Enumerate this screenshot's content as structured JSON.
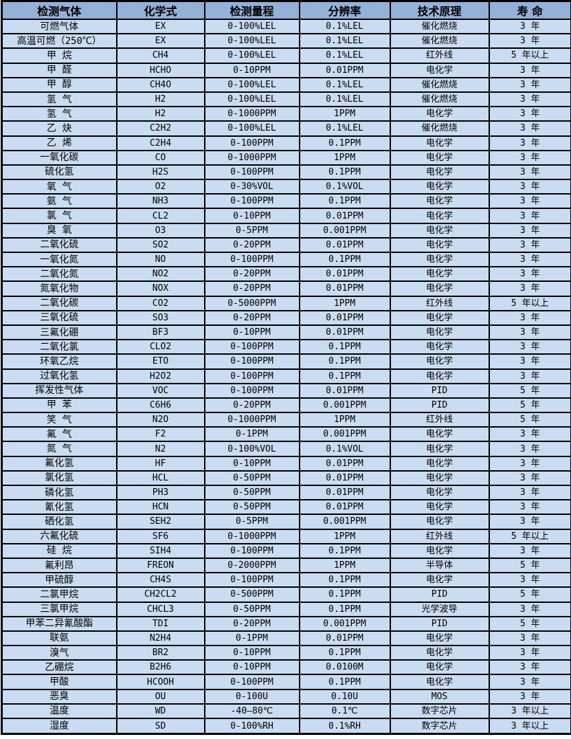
{
  "colors": {
    "header_bg": "#94B1D8",
    "row_bg": "#C9DCF1",
    "border_color": "#000000",
    "text_color": "#000000",
    "page_bg": "#FFFFFF"
  },
  "table": {
    "headers": [
      "检测气体",
      "化学式",
      "检测量程",
      "分辨率",
      "技术原理",
      "寿 命"
    ],
    "rows": [
      {
        "gas": "可燃气体",
        "formula": "EX",
        "range": "0-100%LEL",
        "resolution": "0.1%LEL",
        "principle": "催化燃烧",
        "lifespan": "3 年"
      },
      {
        "gas": "高温可燃（250℃）",
        "formula": "EX",
        "range": "0-100%LEL",
        "resolution": "0.1%LEL",
        "principle": "催化燃烧",
        "lifespan": "3 年"
      },
      {
        "gas": "甲 烷",
        "formula": "CH4",
        "range": "0-100%LEL",
        "resolution": "0.1%LEL",
        "principle": "红外线",
        "lifespan": "5 年以上"
      },
      {
        "gas": "甲 醛",
        "formula": "HCHO",
        "range": "0-10PPM",
        "resolution": "0.01PPM",
        "principle": "电化学",
        "lifespan": "3 年"
      },
      {
        "gas": "甲 醇",
        "formula": "CH4O",
        "range": "0-100%LEL",
        "resolution": "0.1%LEL",
        "principle": "催化燃烧",
        "lifespan": "3 年"
      },
      {
        "gas": "氢 气",
        "formula": "H2",
        "range": "0-100%LEL",
        "resolution": "0.1%LEL",
        "principle": "催化燃烧",
        "lifespan": "3 年"
      },
      {
        "gas": "氢 气",
        "formula": "H2",
        "range": "0-1000PPM",
        "resolution": "1PPM",
        "principle": "电化学",
        "lifespan": "3 年"
      },
      {
        "gas": "乙 炔",
        "formula": "C2H2",
        "range": "0-100%LEL",
        "resolution": "0.1%LEL",
        "principle": "催化燃烧",
        "lifespan": "3 年"
      },
      {
        "gas": "乙 烯",
        "formula": "C2H4",
        "range": "0-100PPM",
        "resolution": "0.1PPM",
        "principle": "电化学",
        "lifespan": "3 年"
      },
      {
        "gas": "一氧化碳",
        "formula": "CO",
        "range": "0-1000PPM",
        "resolution": "1PPM",
        "principle": "电化学",
        "lifespan": "3 年"
      },
      {
        "gas": "硫化氢",
        "formula": "H2S",
        "range": "0-100PPM",
        "resolution": "0.1PPM",
        "principle": "电化学",
        "lifespan": "3 年"
      },
      {
        "gas": "氧 气",
        "formula": "O2",
        "range": "0-30%VOL",
        "resolution": "0.1%VOL",
        "principle": "电化学",
        "lifespan": "3 年"
      },
      {
        "gas": "氨 气",
        "formula": "NH3",
        "range": "0-100PPM",
        "resolution": "0.1PPM",
        "principle": "电化学",
        "lifespan": "3 年"
      },
      {
        "gas": "氯 气",
        "formula": "CL2",
        "range": "0-10PPM",
        "resolution": "0.01PPM",
        "principle": "电化学",
        "lifespan": "3 年"
      },
      {
        "gas": "臭 氧",
        "formula": "O3",
        "range": "0-5PPM",
        "resolution": "0.001PPM",
        "principle": "电化学",
        "lifespan": "3 年"
      },
      {
        "gas": "二氧化硫",
        "formula": "SO2",
        "range": "0-20PPM",
        "resolution": "0.01PPM",
        "principle": "电化学",
        "lifespan": "3 年"
      },
      {
        "gas": "一氧化氮",
        "formula": "NO",
        "range": "0-100PPM",
        "resolution": "0.1PPM",
        "principle": "电化学",
        "lifespan": "3 年"
      },
      {
        "gas": "二氧化氮",
        "formula": "NO2",
        "range": "0-20PPM",
        "resolution": "0.01PPM",
        "principle": "电化学",
        "lifespan": "3 年"
      },
      {
        "gas": "氮氧化物",
        "formula": "NOX",
        "range": "0-20PPM",
        "resolution": "0.01PPM",
        "principle": "电化学",
        "lifespan": "3 年"
      },
      {
        "gas": "二氧化碳",
        "formula": "CO2",
        "range": "0-5000PPM",
        "resolution": "1PPM",
        "principle": "红外线",
        "lifespan": "5 年以上"
      },
      {
        "gas": "三氧化硫",
        "formula": "SO3",
        "range": "0-20PPM",
        "resolution": "0.01PPM",
        "principle": "电化学",
        "lifespan": "3 年"
      },
      {
        "gas": "三氟化硼",
        "formula": "BF3",
        "range": "0-10PPM",
        "resolution": "0.01PPM",
        "principle": "电化学",
        "lifespan": "3 年"
      },
      {
        "gas": "二氧化氯",
        "formula": "CLO2",
        "range": "0-100PPM",
        "resolution": "0.1PPM",
        "principle": "电化学",
        "lifespan": "3 年"
      },
      {
        "gas": "环氧乙烷",
        "formula": "ETO",
        "range": "0-100PPM",
        "resolution": "0.1PPM",
        "principle": "电化学",
        "lifespan": "3 年"
      },
      {
        "gas": "过氧化氢",
        "formula": "H2O2",
        "range": "0-100PPM",
        "resolution": "0.1PPM",
        "principle": "电化学",
        "lifespan": "3 年"
      },
      {
        "gas": "挥发性气体",
        "formula": "VOC",
        "range": "0-100PPM",
        "resolution": "0.01PPM",
        "principle": "PID",
        "lifespan": "5 年"
      },
      {
        "gas": "甲 苯",
        "formula": "C6H6",
        "range": "0-20PPM",
        "resolution": "0.001PPM",
        "principle": "PID",
        "lifespan": "5 年"
      },
      {
        "gas": "笑 气",
        "formula": "N2O",
        "range": "0-1000PPM",
        "resolution": "1PPM",
        "principle": "红外线",
        "lifespan": "5 年"
      },
      {
        "gas": "氟 气",
        "formula": "F2",
        "range": "0-1PPM",
        "resolution": "0.001PPM",
        "principle": "电化学",
        "lifespan": "3 年"
      },
      {
        "gas": "氮 气",
        "formula": "N2",
        "range": "0-100%VOL",
        "resolution": "0.1%VOL",
        "principle": "电化学",
        "lifespan": "3 年"
      },
      {
        "gas": "氟化氢",
        "formula": "HF",
        "range": "0-10PPM",
        "resolution": "0.01PPM",
        "principle": "电化学",
        "lifespan": "3 年"
      },
      {
        "gas": "氯化氢",
        "formula": "HCL",
        "range": "0-50PPM",
        "resolution": "0.01PPM",
        "principle": "电化学",
        "lifespan": "3 年"
      },
      {
        "gas": "磷化氢",
        "formula": "PH3",
        "range": "0-50PPM",
        "resolution": "0.01PPM",
        "principle": "电化学",
        "lifespan": "3 年"
      },
      {
        "gas": "氰化氢",
        "formula": "HCN",
        "range": "0-50PPM",
        "resolution": "0.01PPM",
        "principle": "电化学",
        "lifespan": "3 年"
      },
      {
        "gas": "硒化氢",
        "formula": "SEH2",
        "range": "0-5PPM",
        "resolution": "0.001PPM",
        "principle": "电化学",
        "lifespan": "3 年"
      },
      {
        "gas": "六氟化硫",
        "formula": "SF6",
        "range": "0-1000PPM",
        "resolution": "1PPM",
        "principle": "红外线",
        "lifespan": "5 年以上"
      },
      {
        "gas": "硅 烷",
        "formula": "SIH4",
        "range": "0-100PPM",
        "resolution": "0.1PPM",
        "principle": "电化学",
        "lifespan": "3 年"
      },
      {
        "gas": "氟利昂",
        "formula": "FREON",
        "range": "0-2000PPM",
        "resolution": "1PPM",
        "principle": "半导体",
        "lifespan": "5 年"
      },
      {
        "gas": "甲硫醇",
        "formula": "CH4S",
        "range": "0-100PPM",
        "resolution": "0.1PPM",
        "principle": "电化学",
        "lifespan": "3 年"
      },
      {
        "gas": "二氯甲烷",
        "formula": "CH2CL2",
        "range": "0-500PPM",
        "resolution": "0.1PPM",
        "principle": "PID",
        "lifespan": "5 年"
      },
      {
        "gas": "三氯甲烷",
        "formula": "CHCL3",
        "range": "0-50PPM",
        "resolution": "0.1PPM",
        "principle": "光学波导",
        "lifespan": "3 年"
      },
      {
        "gas": "甲苯二异氰酸酯",
        "formula": "TDI",
        "range": "0-20PPM",
        "resolution": "0.001PPM",
        "principle": "PID",
        "lifespan": "5 年"
      },
      {
        "gas": "联氨",
        "formula": "N2H4",
        "range": "0-1PPM",
        "resolution": "0.01PPM",
        "principle": "电化学",
        "lifespan": "3 年"
      },
      {
        "gas": "溴气",
        "formula": "BR2",
        "range": "0-10PPM",
        "resolution": "0.1PPM",
        "principle": "电化学",
        "lifespan": "3 年"
      },
      {
        "gas": "乙硼烷",
        "formula": "B2H6",
        "range": "0-10PPM",
        "resolution": "0.0100M",
        "principle": "电化学",
        "lifespan": "3 年"
      },
      {
        "gas": "甲酸",
        "formula": "HCOOH",
        "range": "0-100PPM",
        "resolution": "0.1PPM",
        "principle": "电化学",
        "lifespan": "3 年"
      },
      {
        "gas": "恶臭",
        "formula": "OU",
        "range": "0-100U",
        "resolution": "0.10U",
        "principle": "MOS",
        "lifespan": "3 年"
      },
      {
        "gas": "温度",
        "formula": "WD",
        "range": "-40—80℃",
        "resolution": "0.1℃",
        "principle": "数字芯片",
        "lifespan": "3 年以上"
      },
      {
        "gas": "湿度",
        "formula": "SD",
        "range": "0-100%RH",
        "resolution": "0.1%RH",
        "principle": "数字芯片",
        "lifespan": "3 年以上"
      }
    ]
  }
}
